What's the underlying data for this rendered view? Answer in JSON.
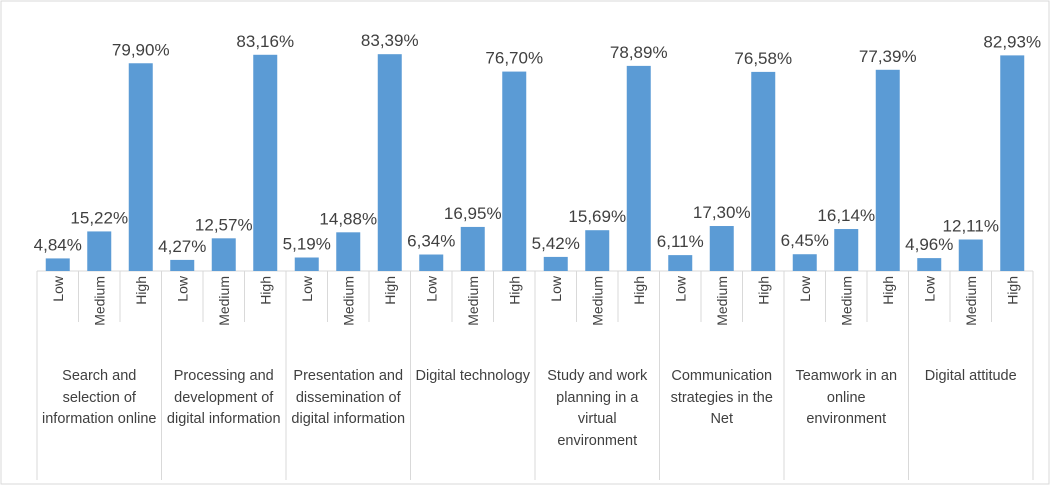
{
  "chart_data": {
    "type": "bar",
    "categories": [
      "Search and selection of information online",
      "Processing and development of digital information",
      "Presentation and dissemination of digital information",
      "Digital technology",
      "Study and work planning in a virtual environment",
      "Communication strategies in the Net",
      "Teamwork in an online environment",
      "Digital attitude"
    ],
    "series": [
      {
        "name": "Low",
        "color": "#5b9bd5",
        "values": [
          4.84,
          4.27,
          5.19,
          6.34,
          5.42,
          6.11,
          6.45,
          4.96
        ],
        "value_labels": [
          "4,84%",
          "4,27%",
          "5,19%",
          "6,34%",
          "5,42%",
          "6,11%",
          "6,45%",
          "4,96%"
        ]
      },
      {
        "name": "Medium",
        "color": "#5b9bd5",
        "values": [
          15.22,
          12.57,
          14.88,
          16.95,
          15.69,
          17.3,
          16.14,
          12.11
        ],
        "value_labels": [
          "15,22%",
          "12,57%",
          "14,88%",
          "16,95%",
          "15,69%",
          "17,30%",
          "16,14%",
          "12,11%"
        ]
      },
      {
        "name": "High",
        "color": "#5b9bd5",
        "values": [
          79.9,
          83.16,
          83.39,
          76.7,
          78.89,
          76.58,
          77.39,
          82.93
        ],
        "value_labels": [
          "79,90%",
          "83,16%",
          "83,39%",
          "76,70%",
          "78,89%",
          "76,58%",
          "77,39%",
          "82,93%"
        ]
      }
    ],
    "ylim": [
      0,
      85
    ]
  }
}
